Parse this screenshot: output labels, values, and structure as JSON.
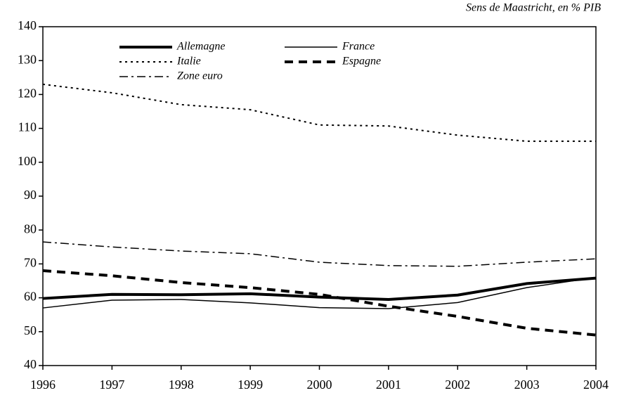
{
  "chart_data": {
    "type": "line",
    "subtitle": "Sens de Maastricht, en  % PIB",
    "x": [
      1996,
      1997,
      1998,
      1999,
      2000,
      2001,
      2002,
      2003,
      2004
    ],
    "xlim": [
      1996,
      2004
    ],
    "xticks": [
      1996,
      1997,
      1998,
      1999,
      2000,
      2001,
      2002,
      2003,
      2004
    ],
    "ylim": [
      40,
      140
    ],
    "yticks": [
      40,
      50,
      60,
      70,
      80,
      90,
      100,
      110,
      120,
      130,
      140
    ],
    "series": [
      {
        "name": "Allemagne",
        "color": "#000000",
        "dash": "solid",
        "linewidth": 4,
        "values": [
          59.8,
          61,
          60.9,
          61.2,
          60.2,
          59.5,
          60.8,
          64.2,
          65.8
        ]
      },
      {
        "name": "France",
        "color": "#000000",
        "dash": "solid",
        "linewidth": 1.5,
        "values": [
          57,
          59.3,
          59.5,
          58.5,
          57.1,
          56.8,
          58.6,
          63,
          66
        ]
      },
      {
        "name": "Italie",
        "color": "#000000",
        "dash": "dotted",
        "linewidth": 2,
        "values": [
          123,
          120.5,
          117,
          115.5,
          111,
          110.7,
          108,
          106.2,
          106.2
        ]
      },
      {
        "name": "Espagne",
        "color": "#000000",
        "dash": "dashed",
        "linewidth": 4,
        "values": [
          68,
          66.5,
          64.5,
          63,
          61,
          57.5,
          54.5,
          51,
          49
        ]
      },
      {
        "name": "Zone euro",
        "color": "#000000",
        "dash": "dashdot",
        "linewidth": 1.5,
        "values": [
          76.5,
          75,
          73.8,
          73,
          70.5,
          69.5,
          69.3,
          70.5,
          71.5
        ]
      }
    ]
  }
}
